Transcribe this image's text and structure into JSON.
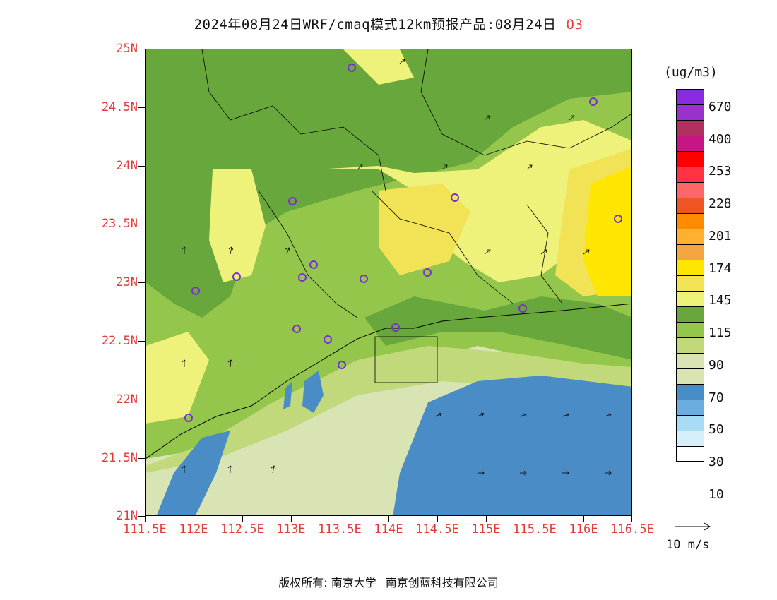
{
  "title": {
    "main": "2024年08月24日WRF/cmaq模式12km预报产品:08月24日",
    "pollutant": "O3"
  },
  "map": {
    "y_axis_labels": [
      "25N",
      "24.5N",
      "24N",
      "23.5N",
      "23N",
      "22.5N",
      "22N",
      "21.5N",
      "21N"
    ],
    "x_axis_labels": [
      "111.5E",
      "112E",
      "112.5E",
      "113E",
      "113.5E",
      "114E",
      "114.5E",
      "115E",
      "115.5E",
      "116E",
      "116.5E"
    ],
    "lat_range": [
      21,
      25
    ],
    "lon_range": [
      111.5,
      116.5
    ],
    "palette": {
      "sea_blue": "#4a8cc5",
      "pale_green": "#d9e4b4",
      "light_green": "#c1d97a",
      "mid_green": "#95c64c",
      "dark_green": "#68a73c",
      "pale_yellow": "#eef27a",
      "yellow": "#f2e255",
      "bright_yellow": "#ffe600",
      "station_marker": "#7b2fcf"
    }
  },
  "colorbar": {
    "unit": "(ug/m3)",
    "labels": [
      "670",
      "400",
      "253",
      "228",
      "201",
      "174",
      "145",
      "115",
      "90",
      "70",
      "50",
      "30",
      "10"
    ],
    "colors": [
      "#8a2be2",
      "#9932cc",
      "#b03060",
      "#c71585",
      "#ff0000",
      "#ff3344",
      "#ff6666",
      "#ee5522",
      "#ff8c00",
      "#ffb030",
      "#f5a640",
      "#ffe600",
      "#f2e255",
      "#eef27a",
      "#68a73c",
      "#95c64c",
      "#c1d97a",
      "#d9e4b4",
      "#d9e4b4",
      "#4a8cc5",
      "#6aaee0",
      "#a8dcf5",
      "#d6effa",
      "#ffffff"
    ]
  },
  "wind_legend": {
    "label": "10 m/s"
  },
  "footer": {
    "copyright_label": "版权所有:",
    "org1": "南京大学",
    "org2": "南京创蓝科技有限公司"
  }
}
